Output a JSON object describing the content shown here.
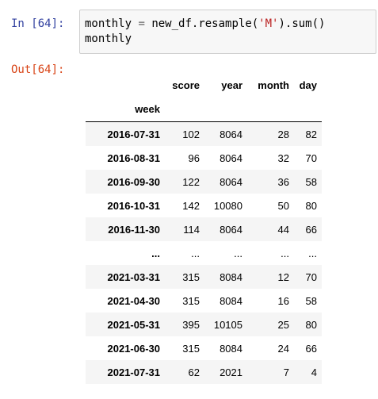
{
  "input_prompt": "In [64]:",
  "output_prompt": "Out[64]:",
  "code": {
    "line1": {
      "var": "monthly",
      "eq": " = ",
      "call_pre": "new_df.resample(",
      "arg": "'M'",
      "call_post": ").sum()"
    },
    "line2": "monthly"
  },
  "table": {
    "columns": [
      "score",
      "year",
      "month",
      "day"
    ],
    "index_name": "week",
    "rows": [
      {
        "week": "2016-07-31",
        "score": "102",
        "year": "8064",
        "month": "28",
        "day": "82"
      },
      {
        "week": "2016-08-31",
        "score": "96",
        "year": "8064",
        "month": "32",
        "day": "70"
      },
      {
        "week": "2016-09-30",
        "score": "122",
        "year": "8064",
        "month": "36",
        "day": "58"
      },
      {
        "week": "2016-10-31",
        "score": "142",
        "year": "10080",
        "month": "50",
        "day": "80"
      },
      {
        "week": "2016-11-30",
        "score": "114",
        "year": "8064",
        "month": "44",
        "day": "66"
      },
      {
        "week": "...",
        "score": "...",
        "year": "...",
        "month": "...",
        "day": "..."
      },
      {
        "week": "2021-03-31",
        "score": "315",
        "year": "8084",
        "month": "12",
        "day": "70"
      },
      {
        "week": "2021-04-30",
        "score": "315",
        "year": "8084",
        "month": "16",
        "day": "58"
      },
      {
        "week": "2021-05-31",
        "score": "395",
        "year": "10105",
        "month": "25",
        "day": "80"
      },
      {
        "week": "2021-06-30",
        "score": "315",
        "year": "8084",
        "month": "24",
        "day": "66"
      },
      {
        "week": "2021-07-31",
        "score": "62",
        "year": "2021",
        "month": "7",
        "day": "4"
      }
    ]
  }
}
